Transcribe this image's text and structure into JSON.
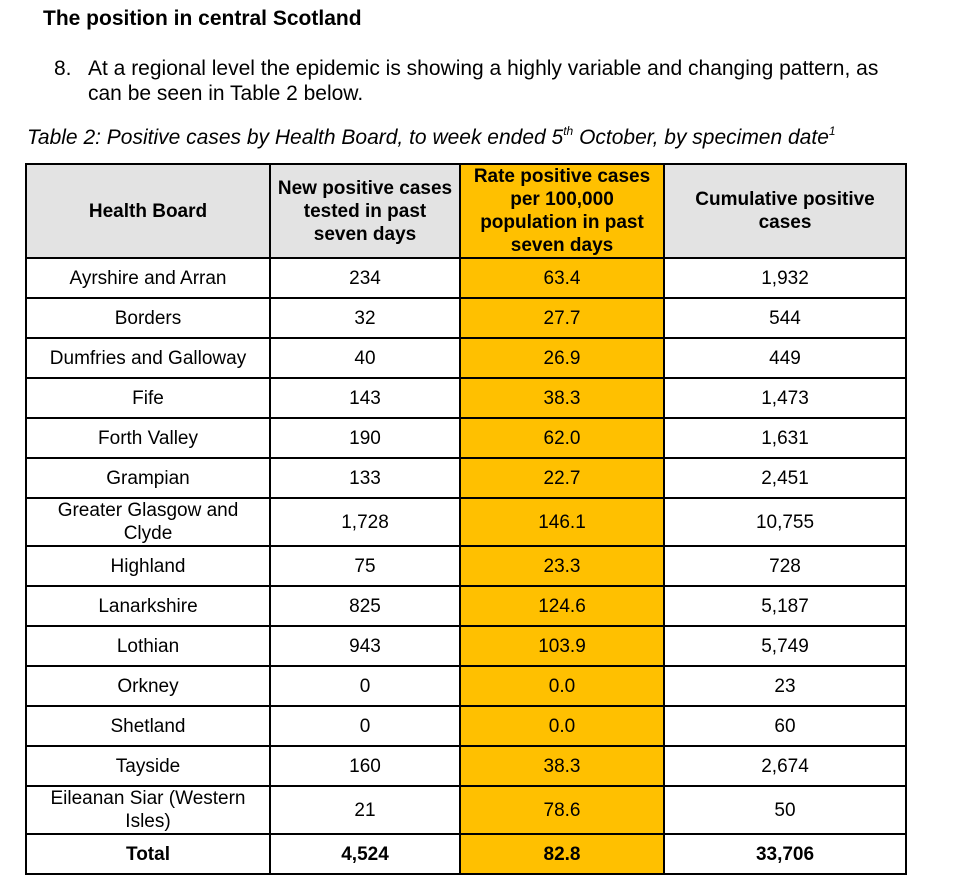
{
  "heading": "The position in central Scotland",
  "paragraph": {
    "number": "8.",
    "text": "At a regional level the epidemic is showing a highly variable and changing pattern, as can be seen in Table 2 below."
  },
  "caption": {
    "text_before": "Table 2: Positive cases by Health Board, to week ended 5",
    "ordinal_suffix": "th",
    "text_after": " October, by specimen date",
    "footnote_ref": "1"
  },
  "table": {
    "headers": {
      "board": "Health Board",
      "new_cases": "New positive cases tested in past seven days",
      "rate": "Rate positive cases per 100,000 population in past seven days",
      "cumulative": "Cumulative positive cases"
    },
    "rows": [
      {
        "board": "Ayrshire and Arran",
        "new_cases": "234",
        "rate": "63.4",
        "cumulative": "1,932"
      },
      {
        "board": "Borders",
        "new_cases": "32",
        "rate": "27.7",
        "cumulative": "544"
      },
      {
        "board": "Dumfries and Galloway",
        "new_cases": "40",
        "rate": "26.9",
        "cumulative": "449"
      },
      {
        "board": "Fife",
        "new_cases": "143",
        "rate": "38.3",
        "cumulative": "1,473"
      },
      {
        "board": "Forth Valley",
        "new_cases": "190",
        "rate": "62.0",
        "cumulative": "1,631"
      },
      {
        "board": "Grampian",
        "new_cases": "133",
        "rate": "22.7",
        "cumulative": "2,451"
      },
      {
        "board": "Greater Glasgow and Clyde",
        "new_cases": "1,728",
        "rate": "146.1",
        "cumulative": "10,755"
      },
      {
        "board": "Highland",
        "new_cases": "75",
        "rate": "23.3",
        "cumulative": "728"
      },
      {
        "board": "Lanarkshire",
        "new_cases": "825",
        "rate": "124.6",
        "cumulative": "5,187"
      },
      {
        "board": "Lothian",
        "new_cases": "943",
        "rate": "103.9",
        "cumulative": "5,749"
      },
      {
        "board": "Orkney",
        "new_cases": "0",
        "rate": "0.0",
        "cumulative": "23"
      },
      {
        "board": "Shetland",
        "new_cases": "0",
        "rate": "0.0",
        "cumulative": "60"
      },
      {
        "board": "Tayside",
        "new_cases": "160",
        "rate": "38.3",
        "cumulative": "2,674"
      },
      {
        "board": "Eileanan Siar (Western Isles)",
        "new_cases": "21",
        "rate": "78.6",
        "cumulative": "50"
      }
    ],
    "total": {
      "board": "Total",
      "new_cases": "4,524",
      "rate": "82.8",
      "cumulative": "33,706"
    }
  },
  "colors": {
    "rate_highlight": "#ffc000",
    "header_background": "#e3e3e3"
  }
}
